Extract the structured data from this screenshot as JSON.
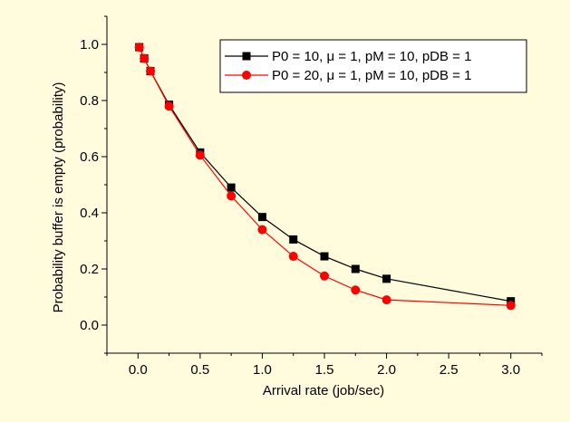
{
  "chart_data": {
    "type": "line",
    "title": "",
    "xlabel": "Arrival rate (job/sec)",
    "ylabel": "Probability buffer is empty (probability)",
    "xlim": [
      -0.25,
      3.25
    ],
    "ylim": [
      -0.1,
      1.1
    ],
    "xticks": [
      "0.0",
      "0.5",
      "1.0",
      "1.5",
      "2.0",
      "2.5",
      "3.0"
    ],
    "yticks": [
      "0.0",
      "0.2",
      "0.4",
      "0.6",
      "0.8",
      "1.0"
    ],
    "grid": false,
    "legend_position": "top-right",
    "series": [
      {
        "name": "P0 = 10, μ = 1, pM = 10, pDB = 1",
        "color": "#000000",
        "marker": "square",
        "x": [
          0.01,
          0.05,
          0.1,
          0.25,
          0.5,
          0.75,
          1.0,
          1.25,
          1.5,
          1.75,
          2.0,
          3.0
        ],
        "y": [
          0.99,
          0.95,
          0.905,
          0.785,
          0.615,
          0.49,
          0.385,
          0.305,
          0.245,
          0.2,
          0.165,
          0.085
        ]
      },
      {
        "name": "P0 = 20, μ = 1, pM = 10, pDB = 1",
        "color": "#ff0000",
        "marker": "circle",
        "x": [
          0.01,
          0.05,
          0.1,
          0.25,
          0.5,
          0.75,
          1.0,
          1.25,
          1.5,
          1.75,
          2.0,
          3.0
        ],
        "y": [
          0.99,
          0.95,
          0.905,
          0.78,
          0.605,
          0.46,
          0.34,
          0.245,
          0.175,
          0.125,
          0.09,
          0.07
        ]
      }
    ]
  }
}
